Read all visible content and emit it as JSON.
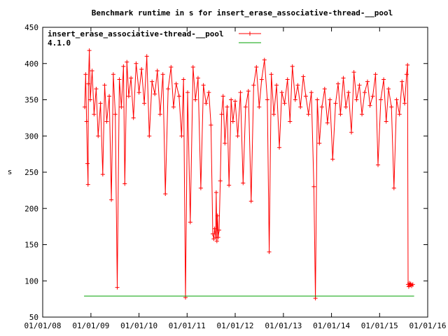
{
  "chart_data": {
    "type": "line",
    "title": "Benchmark runtime in s for insert_erase_associative-thread-__pool",
    "xlabel": "",
    "ylabel": "s",
    "ylim": [
      50,
      450
    ],
    "yticks": [
      50,
      100,
      150,
      200,
      250,
      300,
      350,
      400,
      450
    ],
    "xlim": [
      "2008-01-01",
      "2016-01-01"
    ],
    "xticks": [
      "01/01/08",
      "01/01/09",
      "01/01/10",
      "01/01/11",
      "01/01/12",
      "01/01/13",
      "01/01/14",
      "01/01/15",
      "01/01/16"
    ],
    "grid": false,
    "legend_position": "top-left",
    "series": [
      {
        "name": "insert_erase_associative-thread-__pool",
        "color": "#ff0000",
        "marker": "plus",
        "points": [
          [
            "2008-11-15",
            340
          ],
          [
            "2008-11-22",
            385
          ],
          [
            "2008-11-29",
            320
          ],
          [
            "2008-12-06",
            262
          ],
          [
            "2008-12-10",
            233
          ],
          [
            "2008-12-13",
            372
          ],
          [
            "2008-12-20",
            418
          ],
          [
            "2008-12-27",
            350
          ],
          [
            "2009-01-10",
            390
          ],
          [
            "2009-01-25",
            330
          ],
          [
            "2009-02-10",
            365
          ],
          [
            "2009-02-25",
            300
          ],
          [
            "2009-03-15",
            345
          ],
          [
            "2009-04-01",
            247
          ],
          [
            "2009-04-15",
            370
          ],
          [
            "2009-05-01",
            320
          ],
          [
            "2009-05-20",
            355
          ],
          [
            "2009-06-05",
            212
          ],
          [
            "2009-06-20",
            385
          ],
          [
            "2009-07-05",
            330
          ],
          [
            "2009-07-20",
            91
          ],
          [
            "2009-08-05",
            378
          ],
          [
            "2009-08-20",
            340
          ],
          [
            "2009-09-05",
            396
          ],
          [
            "2009-09-15",
            234
          ],
          [
            "2009-10-01",
            402
          ],
          [
            "2009-10-15",
            355
          ],
          [
            "2009-11-01",
            380
          ],
          [
            "2009-11-20",
            325
          ],
          [
            "2009-12-10",
            400
          ],
          [
            "2010-01-01",
            360
          ],
          [
            "2010-01-20",
            392
          ],
          [
            "2010-02-10",
            345
          ],
          [
            "2010-03-01",
            410
          ],
          [
            "2010-03-20",
            300
          ],
          [
            "2010-04-10",
            375
          ],
          [
            "2010-05-01",
            358
          ],
          [
            "2010-05-20",
            390
          ],
          [
            "2010-06-10",
            330
          ],
          [
            "2010-07-01",
            385
          ],
          [
            "2010-07-20",
            220
          ],
          [
            "2010-08-10",
            365
          ],
          [
            "2010-09-01",
            395
          ],
          [
            "2010-09-20",
            340
          ],
          [
            "2010-10-10",
            372
          ],
          [
            "2010-11-01",
            355
          ],
          [
            "2010-11-20",
            300
          ],
          [
            "2010-12-05",
            378
          ],
          [
            "2010-12-20",
            77
          ],
          [
            "2011-01-05",
            360
          ],
          [
            "2011-01-25",
            181
          ],
          [
            "2011-02-15",
            395
          ],
          [
            "2011-03-05",
            350
          ],
          [
            "2011-03-25",
            380
          ],
          [
            "2011-04-15",
            228
          ],
          [
            "2011-05-05",
            370
          ],
          [
            "2011-05-25",
            345
          ],
          [
            "2011-06-15",
            360
          ],
          [
            "2011-07-01",
            315
          ],
          [
            "2011-07-15",
            165
          ],
          [
            "2011-07-22",
            158
          ],
          [
            "2011-07-29",
            172
          ],
          [
            "2011-08-05",
            160
          ],
          [
            "2011-08-10",
            222
          ],
          [
            "2011-08-15",
            155
          ],
          [
            "2011-08-20",
            190
          ],
          [
            "2011-08-25",
            160
          ],
          [
            "2011-09-01",
            170
          ],
          [
            "2011-09-10",
            238
          ],
          [
            "2011-09-20",
            330
          ],
          [
            "2011-10-01",
            355
          ],
          [
            "2011-10-15",
            290
          ],
          [
            "2011-11-01",
            340
          ],
          [
            "2011-11-15",
            232
          ],
          [
            "2011-12-01",
            350
          ],
          [
            "2011-12-15",
            320
          ],
          [
            "2012-01-01",
            348
          ],
          [
            "2012-01-20",
            300
          ],
          [
            "2012-02-10",
            360
          ],
          [
            "2012-03-01",
            235
          ],
          [
            "2012-03-20",
            340
          ],
          [
            "2012-04-10",
            362
          ],
          [
            "2012-05-01",
            210
          ],
          [
            "2012-05-20",
            370
          ],
          [
            "2012-06-10",
            395
          ],
          [
            "2012-07-01",
            340
          ],
          [
            "2012-07-20",
            378
          ],
          [
            "2012-08-10",
            405
          ],
          [
            "2012-09-01",
            350
          ],
          [
            "2012-09-15",
            140
          ],
          [
            "2012-10-01",
            385
          ],
          [
            "2012-10-20",
            330
          ],
          [
            "2012-11-10",
            370
          ],
          [
            "2012-12-01",
            284
          ],
          [
            "2012-12-20",
            360
          ],
          [
            "2013-01-10",
            345
          ],
          [
            "2013-02-01",
            378
          ],
          [
            "2013-02-20",
            320
          ],
          [
            "2013-03-10",
            396
          ],
          [
            "2013-04-01",
            350
          ],
          [
            "2013-04-20",
            370
          ],
          [
            "2013-05-10",
            340
          ],
          [
            "2013-06-01",
            382
          ],
          [
            "2013-06-20",
            355
          ],
          [
            "2013-07-10",
            330
          ],
          [
            "2013-08-01",
            360
          ],
          [
            "2013-08-20",
            230
          ],
          [
            "2013-09-01",
            76
          ],
          [
            "2013-09-15",
            350
          ],
          [
            "2013-10-01",
            290
          ],
          [
            "2013-10-20",
            340
          ],
          [
            "2013-11-10",
            365
          ],
          [
            "2013-12-01",
            318
          ],
          [
            "2013-12-20",
            350
          ],
          [
            "2014-01-10",
            268
          ],
          [
            "2014-02-01",
            345
          ],
          [
            "2014-02-20",
            372
          ],
          [
            "2014-03-10",
            330
          ],
          [
            "2014-04-01",
            380
          ],
          [
            "2014-04-20",
            340
          ],
          [
            "2014-05-10",
            360
          ],
          [
            "2014-06-01",
            305
          ],
          [
            "2014-06-20",
            388
          ],
          [
            "2014-07-10",
            350
          ],
          [
            "2014-08-01",
            370
          ],
          [
            "2014-08-20",
            330
          ],
          [
            "2014-09-10",
            360
          ],
          [
            "2014-10-01",
            375
          ],
          [
            "2014-10-20",
            342
          ],
          [
            "2014-11-10",
            355
          ],
          [
            "2014-12-01",
            385
          ],
          [
            "2014-12-20",
            260
          ],
          [
            "2015-01-10",
            350
          ],
          [
            "2015-02-01",
            378
          ],
          [
            "2015-02-20",
            320
          ],
          [
            "2015-03-10",
            365
          ],
          [
            "2015-04-01",
            340
          ],
          [
            "2015-04-20",
            228
          ],
          [
            "2015-05-10",
            350
          ],
          [
            "2015-06-01",
            330
          ],
          [
            "2015-06-20",
            375
          ],
          [
            "2015-07-10",
            345
          ],
          [
            "2015-07-25",
            385
          ],
          [
            "2015-08-01",
            398
          ],
          [
            "2015-08-05",
            95
          ],
          [
            "2015-08-10",
            92
          ],
          [
            "2015-08-15",
            97
          ],
          [
            "2015-08-20",
            94
          ],
          [
            "2015-08-25",
            96
          ],
          [
            "2015-09-01",
            93
          ],
          [
            "2015-09-10",
            95
          ]
        ]
      },
      {
        "name": "4.1.0",
        "color": "#00a000",
        "marker": "none",
        "points": [
          [
            "2008-11-10",
            79
          ],
          [
            "2015-09-20",
            79
          ]
        ]
      }
    ]
  }
}
